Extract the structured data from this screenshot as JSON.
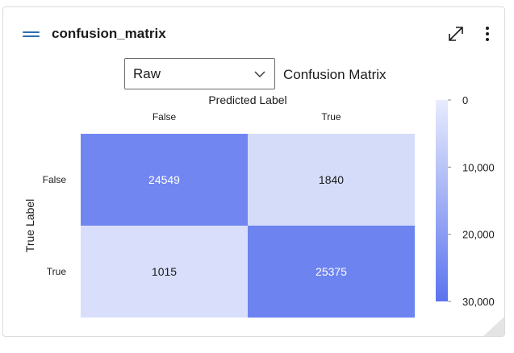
{
  "widget": {
    "title": "confusion_matrix"
  },
  "controls": {
    "mode_select": {
      "value": "Raw",
      "options": [
        "Raw"
      ]
    },
    "chart_heading": "Confusion Matrix"
  },
  "icons": {
    "menu": "hamburger-icon",
    "expand": "expand-icon",
    "more": "more-vertical-icon",
    "dropdown": "chevron-down-icon",
    "resize": "resize-grip-icon"
  },
  "colors": {
    "accent": "#2a6fb5",
    "high": "#6a80f0",
    "low": "#dde3fb",
    "colorbar_top": "#e8ecfd",
    "colorbar_bottom": "#5b74ee"
  },
  "chart_data": {
    "type": "heatmap",
    "title": "Predicted Label",
    "xlabel": "Predicted Label",
    "ylabel": "True Label",
    "x_categories": [
      "False",
      "True"
    ],
    "y_categories": [
      "False",
      "True"
    ],
    "values": [
      [
        24549,
        1840
      ],
      [
        1015,
        25375
      ]
    ],
    "value_labels": [
      [
        "24549",
        "1840"
      ],
      [
        "1015",
        "25375"
      ]
    ],
    "colorbar": {
      "range": [
        0,
        30000
      ],
      "ticks": [
        0,
        10000,
        20000,
        30000
      ],
      "tick_labels": [
        "0",
        "10,000",
        "20,000",
        "30,000"
      ],
      "reversed": true
    }
  }
}
